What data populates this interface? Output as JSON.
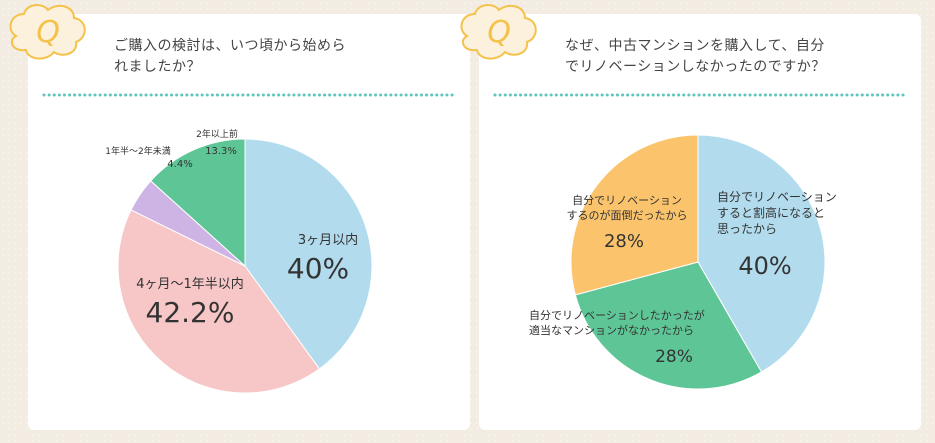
{
  "q_mark": "Q",
  "cards": [
    {
      "question_line1": "ご購入の検討は、いつ頃から始めら",
      "question_line2": "れましたか？",
      "chart_data": {
        "type": "pie",
        "slices": [
          {
            "label": "3ヶ月以内",
            "value": 40,
            "display": "40%",
            "color": "#b2dcee"
          },
          {
            "label": "4ヶ月〜1年半以内",
            "value": 42.2,
            "display": "42.2%",
            "color": "#f7c6c6"
          },
          {
            "label": "1年半〜2年未満",
            "value": 4.4,
            "display": "4.4%",
            "color": "#cdb4e4"
          },
          {
            "label": "2年以上前",
            "value": 13.3,
            "display": "13.3%",
            "color": "#5ec696"
          }
        ]
      }
    },
    {
      "question_line1": "なぜ、中古マンションを購入して、自分",
      "question_line2": "でリノベーションしなかったのですか？",
      "chart_data": {
        "type": "pie",
        "slices": [
          {
            "label_lines": [
              "自分でリノベーション",
              "すると割高になると",
              "思ったから"
            ],
            "value": 40,
            "display": "40%",
            "color": "#b2dcee"
          },
          {
            "label_lines": [
              "自分でリノベーションしたかったが",
              "適当なマンションがなかったから"
            ],
            "value": 28,
            "display": "28%",
            "color": "#5ec696"
          },
          {
            "label_lines": [
              "自分でリノベーション",
              "するのが面倒だったから"
            ],
            "value": 28,
            "display": "28%",
            "color": "#fbc46c"
          }
        ]
      }
    }
  ],
  "colors": {
    "badge": "#f4c24a",
    "badge_bg": "#fbf1dc",
    "dots": "#5ec6bf"
  }
}
